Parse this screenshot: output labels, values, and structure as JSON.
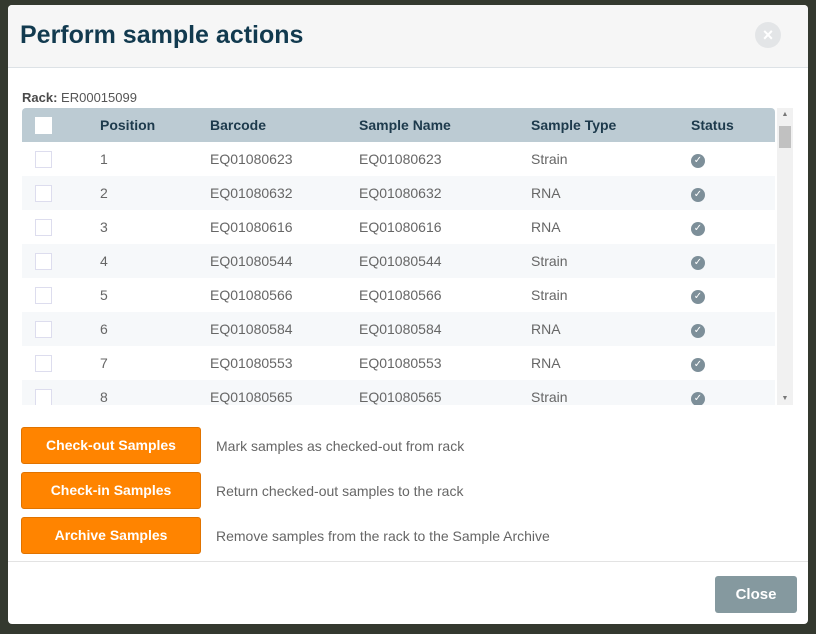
{
  "dialog": {
    "title": "Perform sample actions",
    "close_icon": "×"
  },
  "rack": {
    "label": "Rack:",
    "value": "ER00015099"
  },
  "table": {
    "headers": [
      "Position",
      "Barcode",
      "Sample Name",
      "Sample Type",
      "Status"
    ],
    "rows": [
      {
        "position": "1",
        "barcode": "EQ01080623",
        "name": "EQ01080623",
        "type": "Strain",
        "status": "check-circle-icon"
      },
      {
        "position": "2",
        "barcode": "EQ01080632",
        "name": "EQ01080632",
        "type": "RNA",
        "status": "check-circle-icon"
      },
      {
        "position": "3",
        "barcode": "EQ01080616",
        "name": "EQ01080616",
        "type": "RNA",
        "status": "check-circle-icon"
      },
      {
        "position": "4",
        "barcode": "EQ01080544",
        "name": "EQ01080544",
        "type": "Strain",
        "status": "check-circle-icon"
      },
      {
        "position": "5",
        "barcode": "EQ01080566",
        "name": "EQ01080566",
        "type": "Strain",
        "status": "check-circle-icon"
      },
      {
        "position": "6",
        "barcode": "EQ01080584",
        "name": "EQ01080584",
        "type": "RNA",
        "status": "check-circle-icon"
      },
      {
        "position": "7",
        "barcode": "EQ01080553",
        "name": "EQ01080553",
        "type": "RNA",
        "status": "check-circle-icon"
      },
      {
        "position": "8",
        "barcode": "EQ01080565",
        "name": "EQ01080565",
        "type": "Strain",
        "status": "check-circle-icon"
      }
    ]
  },
  "actions": [
    {
      "label": "Check-out Samples",
      "description": "Mark samples as checked-out from rack"
    },
    {
      "label": "Check-in Samples",
      "description": "Return checked-out samples to the rack"
    },
    {
      "label": "Archive Samples",
      "description": "Remove samples from the rack to the Sample Archive"
    }
  ],
  "footer": {
    "close_label": "Close"
  },
  "colors": {
    "accent": "#ff8400",
    "title": "#123a4f",
    "table_header": "#bccbd3",
    "close_button": "#85999f"
  }
}
